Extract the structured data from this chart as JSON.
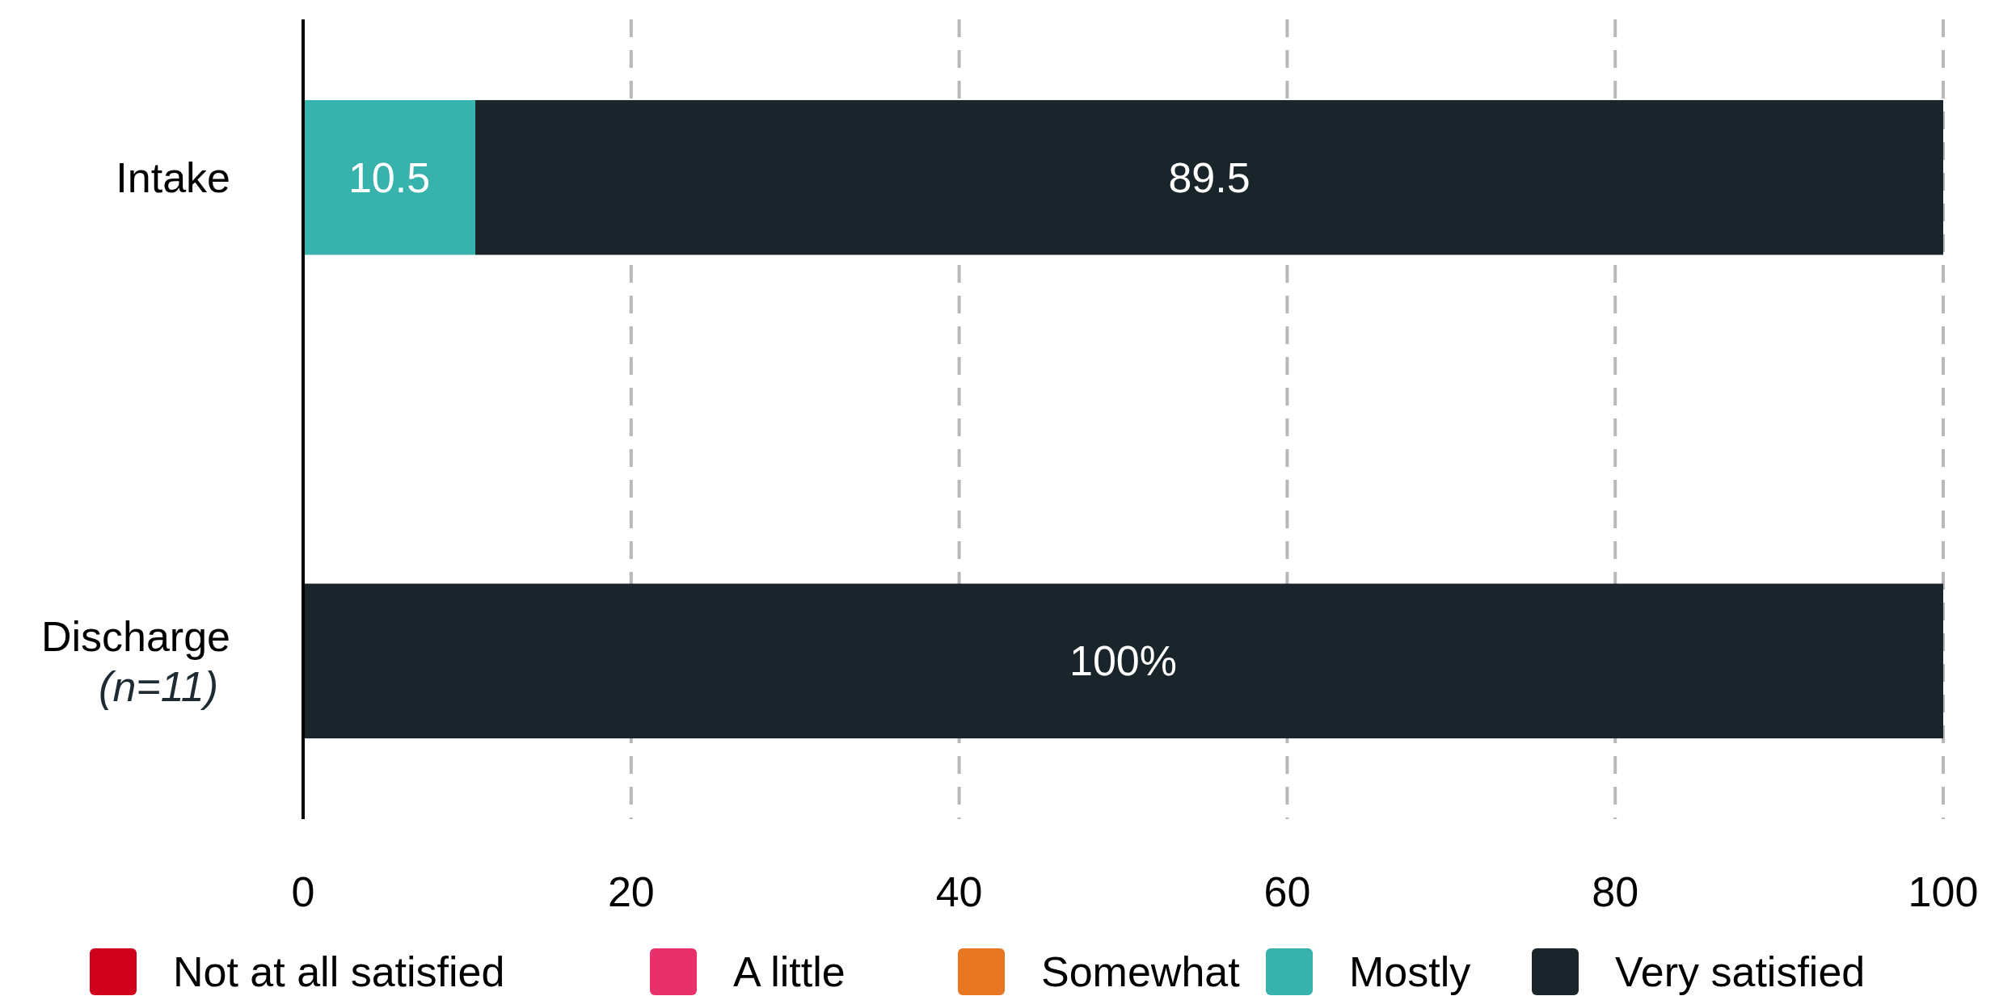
{
  "chart_data": {
    "type": "bar",
    "orientation": "horizontal",
    "stacked": true,
    "categories": [
      "Intake",
      "Discharge\n(n=11)"
    ],
    "series": [
      {
        "name": "Not at all satisfied",
        "color": "#d0021b",
        "values": [
          0,
          0
        ]
      },
      {
        "name": "A little",
        "color": "#e8306a",
        "values": [
          0,
          0
        ]
      },
      {
        "name": "Somewhat",
        "color": "#e87722",
        "values": [
          0,
          0
        ]
      },
      {
        "name": "Mostly",
        "color": "#38b2ac",
        "values": [
          10.5,
          0
        ],
        "value_labels": [
          "10.5",
          null
        ]
      },
      {
        "name": "Very satisfied",
        "color": "#1a242b",
        "values": [
          89.5,
          100
        ],
        "value_labels": [
          "89.5",
          "100%"
        ]
      }
    ],
    "xlim": [
      0,
      100
    ],
    "xticks": [
      0,
      20,
      40,
      60,
      80,
      100
    ],
    "grid": "x",
    "legend": "bottom"
  }
}
